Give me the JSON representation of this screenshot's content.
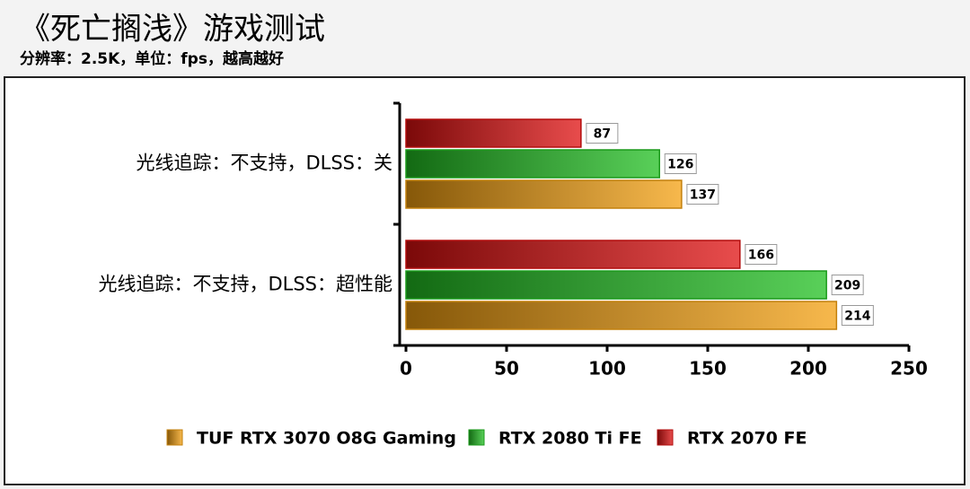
{
  "chart_data": {
    "type": "bar",
    "orientation": "horizontal",
    "title": "《死亡搁浅》游戏测试",
    "subtitle": "分辨率：2.5K，单位：fps，越高越好",
    "categories": [
      "光线追踪：不支持，DLSS：关",
      "光线追踪：不支持，DLSS：超性能"
    ],
    "series": [
      {
        "name": "TUF RTX 3070 O8G Gaming",
        "color": "#f4a010",
        "values": [
          137,
          214
        ]
      },
      {
        "name": "RTX 2080 Ti FE",
        "color": "#22c022",
        "values": [
          126,
          209
        ]
      },
      {
        "name": "RTX 2070 FE",
        "color": "#e01010",
        "values": [
          87,
          166
        ]
      }
    ],
    "xlim": [
      0,
      250
    ],
    "xticks": [
      0,
      50,
      100,
      150,
      200,
      250
    ],
    "legend": "bottom",
    "grid": false
  }
}
